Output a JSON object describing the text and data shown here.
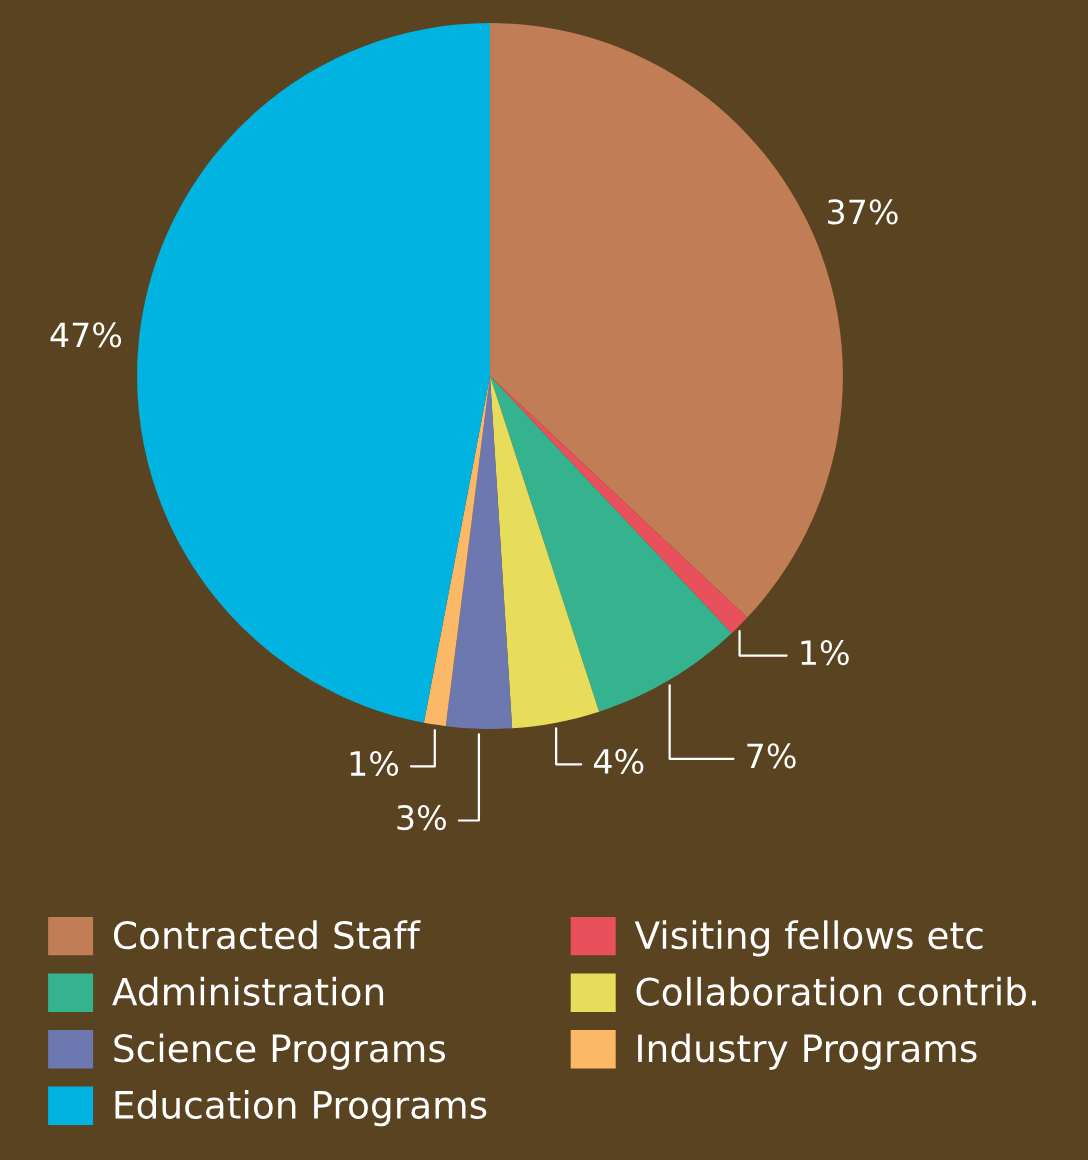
{
  "chart_data": {
    "type": "pie",
    "categories": [
      "Contracted Staff",
      "Visiting fellows etc",
      "Administration",
      "Collaboration contrib.",
      "Science Programs",
      "Industry Programs",
      "Education Programs"
    ],
    "values": [
      37,
      1,
      7,
      4,
      3,
      1,
      47
    ],
    "colors": [
      "#c17d56",
      "#e8505b",
      "#35b38f",
      "#e8dd5a",
      "#6e78b0",
      "#fbb867",
      "#00b3e0"
    ],
    "value_labels": [
      "37%",
      "1%",
      "7%",
      "4%",
      "3%",
      "1%",
      "47%"
    ],
    "legend": "bottom"
  }
}
